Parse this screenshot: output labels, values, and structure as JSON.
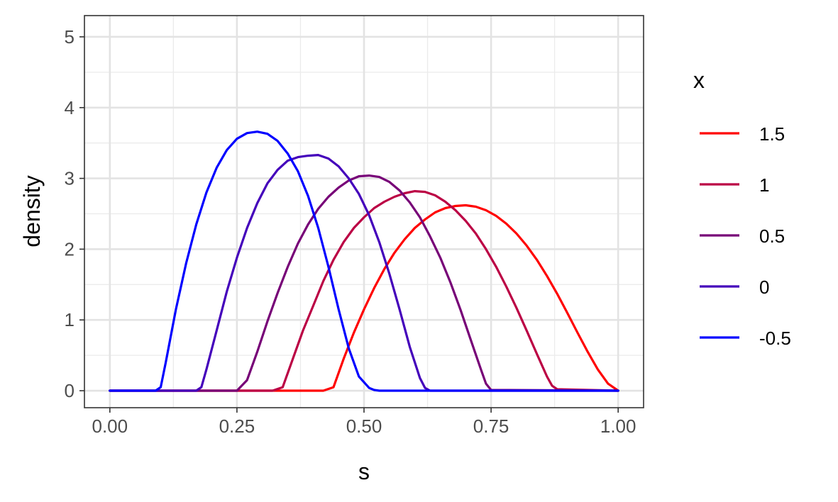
{
  "chart_data": {
    "type": "line",
    "title": "",
    "xlabel": "s",
    "ylabel": "density",
    "xlim": [
      -0.05,
      1.05
    ],
    "ylim": [
      -0.24,
      5.3
    ],
    "xticks": [
      0.0,
      0.25,
      0.5,
      0.75,
      1.0
    ],
    "xtick_labels": [
      "0.00",
      "0.25",
      "0.50",
      "0.75",
      "1.00"
    ],
    "yticks": [
      0,
      1,
      2,
      3,
      4,
      5
    ],
    "ytick_labels": [
      "0",
      "1",
      "2",
      "3",
      "4",
      "5"
    ],
    "grid": true,
    "legend": {
      "title": "x",
      "position": "right"
    },
    "series": [
      {
        "name": "1.5",
        "color": "#ff0000",
        "x": [
          0.0,
          0.33,
          0.4,
          0.42,
          0.44,
          0.46,
          0.48,
          0.5,
          0.52,
          0.54,
          0.56,
          0.58,
          0.6,
          0.62,
          0.64,
          0.66,
          0.68,
          0.7,
          0.72,
          0.74,
          0.76,
          0.78,
          0.8,
          0.82,
          0.84,
          0.86,
          0.88,
          0.9,
          0.92,
          0.94,
          0.96,
          0.98,
          1.0
        ],
        "y": [
          0,
          0,
          0,
          0,
          0.05,
          0.45,
          0.82,
          1.15,
          1.45,
          1.72,
          1.95,
          2.14,
          2.3,
          2.42,
          2.52,
          2.58,
          2.61,
          2.62,
          2.6,
          2.55,
          2.47,
          2.36,
          2.22,
          2.05,
          1.85,
          1.62,
          1.37,
          1.1,
          0.82,
          0.55,
          0.3,
          0.1,
          0
        ]
      },
      {
        "name": "1",
        "color": "#bb0044",
        "x": [
          0.0,
          0.32,
          0.34,
          0.36,
          0.38,
          0.4,
          0.42,
          0.44,
          0.46,
          0.48,
          0.5,
          0.52,
          0.54,
          0.56,
          0.58,
          0.6,
          0.62,
          0.64,
          0.66,
          0.68,
          0.7,
          0.72,
          0.74,
          0.76,
          0.78,
          0.8,
          0.82,
          0.84,
          0.86,
          0.87,
          0.88,
          1.0
        ],
        "y": [
          0,
          0,
          0.05,
          0.45,
          0.85,
          1.2,
          1.55,
          1.85,
          2.1,
          2.3,
          2.45,
          2.58,
          2.67,
          2.74,
          2.79,
          2.82,
          2.81,
          2.76,
          2.67,
          2.55,
          2.4,
          2.22,
          2.0,
          1.75,
          1.47,
          1.17,
          0.85,
          0.52,
          0.2,
          0.07,
          0.02,
          0
        ]
      },
      {
        "name": "0.5",
        "color": "#770077",
        "x": [
          0.0,
          0.25,
          0.27,
          0.29,
          0.31,
          0.33,
          0.35,
          0.37,
          0.39,
          0.41,
          0.43,
          0.45,
          0.47,
          0.49,
          0.51,
          0.53,
          0.55,
          0.57,
          0.59,
          0.61,
          0.63,
          0.65,
          0.67,
          0.69,
          0.71,
          0.73,
          0.74,
          0.75,
          1.0
        ],
        "y": [
          0,
          0,
          0.15,
          0.55,
          0.98,
          1.38,
          1.75,
          2.08,
          2.35,
          2.57,
          2.74,
          2.87,
          2.97,
          3.03,
          3.04,
          3.02,
          2.95,
          2.83,
          2.66,
          2.45,
          2.18,
          1.88,
          1.53,
          1.14,
          0.72,
          0.3,
          0.1,
          0.01,
          0
        ]
      },
      {
        "name": "0",
        "color": "#4400bb",
        "x": [
          0.0,
          0.17,
          0.18,
          0.19,
          0.21,
          0.23,
          0.25,
          0.27,
          0.29,
          0.31,
          0.33,
          0.35,
          0.37,
          0.39,
          0.41,
          0.43,
          0.45,
          0.47,
          0.49,
          0.51,
          0.53,
          0.55,
          0.57,
          0.59,
          0.61,
          0.62,
          0.63,
          1.0
        ],
        "y": [
          0,
          0,
          0.05,
          0.3,
          0.85,
          1.4,
          1.88,
          2.3,
          2.65,
          2.93,
          3.12,
          3.25,
          3.3,
          3.32,
          3.33,
          3.28,
          3.17,
          3.0,
          2.78,
          2.48,
          2.1,
          1.65,
          1.15,
          0.62,
          0.18,
          0.04,
          0,
          0
        ]
      },
      {
        "name": "-0.5",
        "color": "#0000ff",
        "x": [
          0.0,
          0.09,
          0.1,
          0.11,
          0.13,
          0.15,
          0.17,
          0.19,
          0.21,
          0.23,
          0.25,
          0.27,
          0.29,
          0.31,
          0.33,
          0.35,
          0.37,
          0.39,
          0.41,
          0.43,
          0.45,
          0.47,
          0.49,
          0.51,
          0.52,
          0.53,
          1.0
        ],
        "y": [
          0,
          0,
          0.05,
          0.4,
          1.15,
          1.8,
          2.35,
          2.8,
          3.15,
          3.4,
          3.56,
          3.64,
          3.66,
          3.63,
          3.53,
          3.35,
          3.1,
          2.75,
          2.3,
          1.75,
          1.15,
          0.6,
          0.2,
          0.04,
          0.01,
          0,
          0
        ]
      }
    ]
  }
}
